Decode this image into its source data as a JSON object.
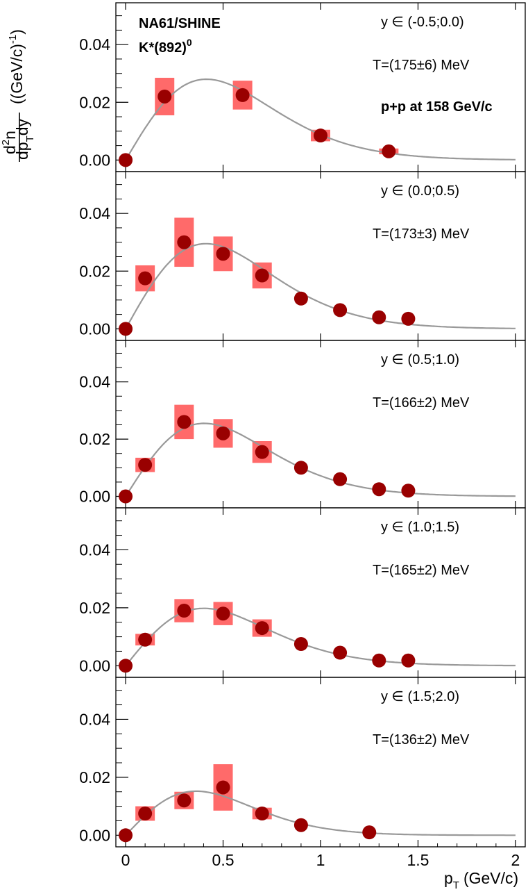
{
  "chart_data": {
    "type": "scatter",
    "experiment": "NA61/SHINE",
    "particle": "K*(892)",
    "particle_sup": "0",
    "system_label": "p+p at 158 GeV/c",
    "xlabel": "p",
    "xlabel_sub": "T",
    "xlabel_unit": "(GeV/c)",
    "ylabel": {
      "num_d": "d",
      "num_sup": "2",
      "num_n": "n",
      "den_dp": "dp",
      "den_sub": "T",
      "den_dy": "dy",
      "unit_open": "((GeV/c)",
      "unit_sup": "-1",
      "unit_close": ")"
    },
    "xlim": [
      -0.05,
      2.05
    ],
    "ylim": [
      -0.004,
      0.054
    ],
    "x_ticks": [
      0,
      0.5,
      1,
      1.5,
      2
    ],
    "x_tick_labels": [
      "0",
      "0.5",
      "1",
      "1.5",
      "2"
    ],
    "y_ticks": [
      0.0,
      0.02,
      0.04
    ],
    "y_tick_labels": [
      "0.00",
      "0.02",
      "0.04"
    ],
    "grid": false,
    "marker_color": "#990000",
    "syst_color": "#ff6a6a",
    "fit_color": "#999999",
    "panels": [
      {
        "rapidity_label": "y ∈ (-0.5;0.0)",
        "temperature_label": "T=(175±6) MeV",
        "fit_peak": 0.028,
        "points": [
          {
            "x": 0.0,
            "y": 0.0,
            "syst": 0.0
          },
          {
            "x": 0.2,
            "y": 0.022,
            "syst": 0.0065
          },
          {
            "x": 0.6,
            "y": 0.0225,
            "syst": 0.005
          },
          {
            "x": 1.0,
            "y": 0.0085,
            "syst": 0.002
          },
          {
            "x": 1.35,
            "y": 0.003,
            "syst": 0.001
          }
        ]
      },
      {
        "rapidity_label": "y ∈ (0.0;0.5)",
        "temperature_label": "T=(173±3) MeV",
        "fit_peak": 0.0295,
        "points": [
          {
            "x": 0.0,
            "y": 0.0,
            "syst": 0.0
          },
          {
            "x": 0.1,
            "y": 0.0175,
            "syst": 0.0045
          },
          {
            "x": 0.3,
            "y": 0.03,
            "syst": 0.0085
          },
          {
            "x": 0.5,
            "y": 0.026,
            "syst": 0.006
          },
          {
            "x": 0.7,
            "y": 0.0185,
            "syst": 0.0045
          },
          {
            "x": 0.9,
            "y": 0.0105,
            "syst": 0.0
          },
          {
            "x": 1.1,
            "y": 0.0065,
            "syst": 0.0
          },
          {
            "x": 1.3,
            "y": 0.004,
            "syst": 0.0
          },
          {
            "x": 1.45,
            "y": 0.0035,
            "syst": 0.0
          }
        ]
      },
      {
        "rapidity_label": "y ∈ (0.5;1.0)",
        "temperature_label": "T=(166±2) MeV",
        "fit_peak": 0.0255,
        "points": [
          {
            "x": 0.0,
            "y": 0.0,
            "syst": 0.0
          },
          {
            "x": 0.1,
            "y": 0.011,
            "syst": 0.0025
          },
          {
            "x": 0.3,
            "y": 0.026,
            "syst": 0.006
          },
          {
            "x": 0.5,
            "y": 0.022,
            "syst": 0.005
          },
          {
            "x": 0.7,
            "y": 0.0155,
            "syst": 0.0038
          },
          {
            "x": 0.9,
            "y": 0.01,
            "syst": 0.0
          },
          {
            "x": 1.1,
            "y": 0.006,
            "syst": 0.0
          },
          {
            "x": 1.3,
            "y": 0.0025,
            "syst": 0.0
          },
          {
            "x": 1.45,
            "y": 0.002,
            "syst": 0.0
          }
        ]
      },
      {
        "rapidity_label": "y ∈ (1.0;1.5)",
        "temperature_label": "T=(165±2) MeV",
        "fit_peak": 0.0198,
        "points": [
          {
            "x": 0.0,
            "y": 0.0,
            "syst": 0.0
          },
          {
            "x": 0.1,
            "y": 0.009,
            "syst": 0.002
          },
          {
            "x": 0.3,
            "y": 0.019,
            "syst": 0.004
          },
          {
            "x": 0.5,
            "y": 0.018,
            "syst": 0.004
          },
          {
            "x": 0.7,
            "y": 0.013,
            "syst": 0.003
          },
          {
            "x": 0.9,
            "y": 0.0075,
            "syst": 0.0
          },
          {
            "x": 1.1,
            "y": 0.0045,
            "syst": 0.0
          },
          {
            "x": 1.3,
            "y": 0.0018,
            "syst": 0.0
          },
          {
            "x": 1.45,
            "y": 0.0018,
            "syst": 0.0
          }
        ]
      },
      {
        "rapidity_label": "y ∈ (1.5;2.0)",
        "temperature_label": "T=(136±2) MeV",
        "fit_peak": 0.0152,
        "points": [
          {
            "x": 0.0,
            "y": 0.0,
            "syst": 0.0
          },
          {
            "x": 0.1,
            "y": 0.0075,
            "syst": 0.0025
          },
          {
            "x": 0.3,
            "y": 0.012,
            "syst": 0.003
          },
          {
            "x": 0.5,
            "y": 0.0165,
            "syst": 0.008
          },
          {
            "x": 0.7,
            "y": 0.0075,
            "syst": 0.002
          },
          {
            "x": 0.9,
            "y": 0.0035,
            "syst": 0.0
          },
          {
            "x": 1.25,
            "y": 0.001,
            "syst": 0.0
          }
        ]
      }
    ]
  }
}
